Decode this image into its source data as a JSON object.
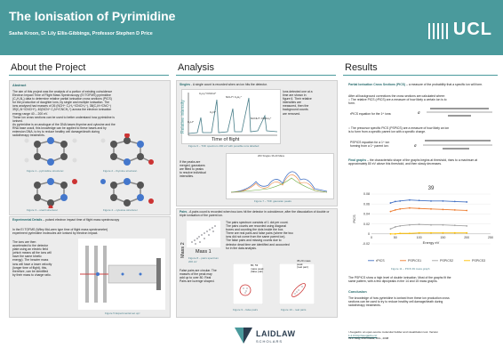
{
  "header": {
    "title": "The Ionisation of Pyrimidine",
    "authors": "Sasha Kroon, Dr Lily Ellis-Gibbings, Professor Stephen D Price",
    "logo": "UCL"
  },
  "sections": {
    "about": "About the Project",
    "analysis": "Analysis",
    "results": "Results"
  },
  "about": {
    "abstract_heading": "Abstract",
    "abstract_text": [
      "The aim of this project was the analysis of a portion of existing coincidence",
      "Electron Impact Time of Flight Mass Spectroscopy (EI TOFMS) pyrimidine",
      "(C₄H₄N₂) data to determine relative partial ionisation cross sections (PICS)",
      "for the production of daughter ions, by single and multiple ionisation. The",
      "ions analysed had masses of 26 (NCH⁺ C₂H₂⁺/CNCH₂⁺), 38(C₂N⁺/CNC⁺)",
      "39(C₂N⁺/CNCH⁺), 40(NCN⁺ C₂N⁺/CNCH₂⁺) across the electron ionisation",
      "energy range 40 – 200 eV.",
      "These ion cross sections can be used to better understand how pyrimidine is",
      "ionised.",
      "As pyrimidine is an analogue of the DNA bases thymine and cytosine and the",
      "RNA base uracil, this knowledge can be applied to these bases and by",
      "extension DNA, to try to reduce healthy cell damage/death during",
      "radiotherapy treatments."
    ],
    "fig1": "Figure 1 – pyrimidine structure¹",
    "fig2": "Figure 2 – thymine structure¹",
    "fig3": "Figure 3 – uracil structure¹",
    "fig4": "Figure 4 – cytosine structure¹",
    "exp_heading": "Experimental Details",
    "exp_heading_rest": " – pulsed electron impact time of flight mass spectroscopy",
    "exp_intro": [
      "In the EI TOFMS (Wiley McLaren type time of flight mass spectrometer)",
      "experiment pyrimidine molecules are ionised by electron impact."
    ],
    "exp_text": [
      "The ions are then",
      "accelerated to the detector",
      "plate using an electric field",
      "(which means all the ions will",
      "have the same kinetic",
      "energy). The heavier mass",
      "ions will have a lower velocity",
      "(longer time of flight), this,",
      "therefore, can be identified",
      "by their mass to charge ratio."
    ],
    "fig5": "Figure 5 Experimental set up²"
  },
  "analysis": {
    "singles_heading": "Singles",
    "singles_heading_rest": " - A single count is recorded when an ion hits the detector.",
    "relative_intensity": "Relative intensity",
    "time_of_flight": "Time of flight",
    "ion_labels": [
      "C₂H₂⁺/CNCH⁺",
      "NCH⁺/ C₂H₂⁺",
      "C₂N⁺",
      "NCNH⁺/ CNCH₂⁺",
      "C₂H⁺"
    ],
    "singles_text": [
      "Ions detected one at a",
      "time are shown in",
      "figure 6. Their relative",
      "intensities are",
      "measured, then the",
      "background counts",
      "are removed."
    ],
    "fig6": "Figure 6 – TOF spectrum 200 eV with possible ions labelled",
    "gauss_text": [
      "If the peaks are",
      "merged, gaussians",
      "are fitted to peaks",
      "to resolve individual",
      "intensities."
    ],
    "fig7_title": "200 Singles 36-40 Mass",
    "fig7": "Figure 7 – TOF gaussian peaks",
    "pairs_heading": "Pairs",
    "pairs_heading_rest": " - A pairs count is recorded when two ions hit the detector in coincidence, after the dissociation of double or triple ionisation of the parent ion.",
    "mass1": "Mass 1",
    "mass2": "Mass 2",
    "pairs_text": [
      "The pairs spectrum consists of 1 dot per count.",
      "The pairs counts are recorded using diagonal",
      "boxes and counting the dots inside the box.",
      "There are real pairs and false pairs (where the two",
      "ions did not come from the same parent ion).",
      "The false pairs and missing counts due to",
      "detector dead time are identified and accounted",
      "for in the data analysis."
    ],
    "fig8": "Figure 8 – pairs spectrum 200 eV",
    "false_pairs_text": [
      "False pairs are circular. The",
      "masses of the peak may",
      "add up to over 80. Real",
      "Pairs are lozenge shaped."
    ],
    "label_80": "80, 53",
    "label_80b": "mass peak",
    "label_80c": "(false pair)",
    "label_35": "35,20 mass",
    "label_35b": "peak",
    "label_35c": "(real pair)",
    "fig9": "Figure 9 – false pairs",
    "fig10": "Figure 10 – real pairs"
  },
  "results": {
    "pics_heading": "Partial Ionisation Cross Sections (PICS)",
    "pics_heading_rest": " – a measure of the probability that a specific ion will form.",
    "pics_text": [
      "After all background corrections the cross sections are calculated where:",
      "○ The relative PICS (rPICS) are a measure of how likely a certain ion is to",
      "   form."
    ],
    "rpics_eq_label": "rPICS equation for the 1ˢᵗ ions:",
    "prec_text": [
      "○ The precursor specific PICS (PSPICS) are a measure of how likely an ion",
      "   is to form from a specific parent ion with a specific charge."
    ],
    "pspics_eq_label": "PSPICS equation for a 1⁺ ion",
    "pspics_eq_label2": "forming from a 1⁺ parent ion:",
    "final_heading": "Final graphs",
    "final_heading_rest": " – the characteristic shape of the graphs begins at threshold, rises to a maximum at approximately 80 eV above this threshold, and then slowly decreases.",
    "fig11": "Figure 11 – PICS 39 mass graph",
    "summary_text": [
      "The PSPICS show a high level of double ionisation. Most of the graphs fit the",
      "same pattern, with a few dips/peaks in the 14 and 15 mass graphs."
    ],
    "conclusion_heading": "Conclusion",
    "conclusion_text": [
      "The knowledge of how pyrimidine is ionised from these ion production cross",
      "sections can be used to try to reduce healthy cell damage/death during",
      "radiotherapy treatments."
    ],
    "refs": [
      "¹ Avogadro: an open-source molecular builder and visualization tool. Version",
      "1.2.0 http://avogadro.cc/",
      "²S.J. King, PhD thesis, UCL, 2008"
    ]
  },
  "laidlaw": {
    "name": "LAIDLAW",
    "sub": "SCHOLARS"
  },
  "colors": {
    "teal": "#4a9a9c",
    "rpics": "#4472c4",
    "ps1": "#ed7d31",
    "ps2": "#a5a5a5",
    "ps3": "#ffc000"
  },
  "chart_data": [
    {
      "type": "line",
      "title": "39",
      "xlabel": "Energy eV",
      "ylabel": "PICS",
      "xlim": [
        0,
        250
      ],
      "ylim": [
        -0.02,
        0.08
      ],
      "xticks": [
        "0",
        "50",
        "100",
        "150",
        "200",
        "250"
      ],
      "yticks": [
        "0.08",
        "0.06",
        "0.04",
        "0.02",
        "0",
        "-0.02"
      ],
      "x": [
        40,
        50,
        60,
        80,
        100,
        125,
        150,
        175,
        200
      ],
      "series": [
        {
          "name": "rPICS",
          "values": [
            0.062,
            0.065,
            0.066,
            0.068,
            0.067,
            0.066,
            0.066,
            0.065,
            0.064
          ]
        },
        {
          "name": "PSPICS1",
          "values": [
            0.045,
            0.048,
            0.05,
            0.052,
            0.051,
            0.05,
            0.049,
            0.048,
            0.047
          ]
        },
        {
          "name": "PSPICS2",
          "values": [
            0.01,
            0.014,
            0.016,
            0.018,
            0.019,
            0.018,
            0.018,
            0.017,
            0.016
          ]
        },
        {
          "name": "PSPICS3",
          "values": [
            0.0,
            0.0,
            0.001,
            0.001,
            0.002,
            0.002,
            0.002,
            0.002,
            0.002
          ]
        }
      ],
      "legend": "bottom"
    },
    {
      "type": "line",
      "title": "200 Singles 36-40 Mass",
      "x": [
        36,
        36.5,
        37,
        37.5,
        38,
        38.5,
        39,
        39.5,
        40
      ],
      "series": [
        {
          "values": [
            5,
            40,
            200,
            120,
            420,
            250,
            900,
            500,
            600
          ]
        },
        {
          "values": [
            0,
            20,
            180,
            60,
            380,
            120,
            850,
            200,
            500
          ]
        },
        {
          "values": [
            0,
            10,
            60,
            30,
            120,
            60,
            300,
            120,
            200
          ]
        }
      ]
    }
  ]
}
